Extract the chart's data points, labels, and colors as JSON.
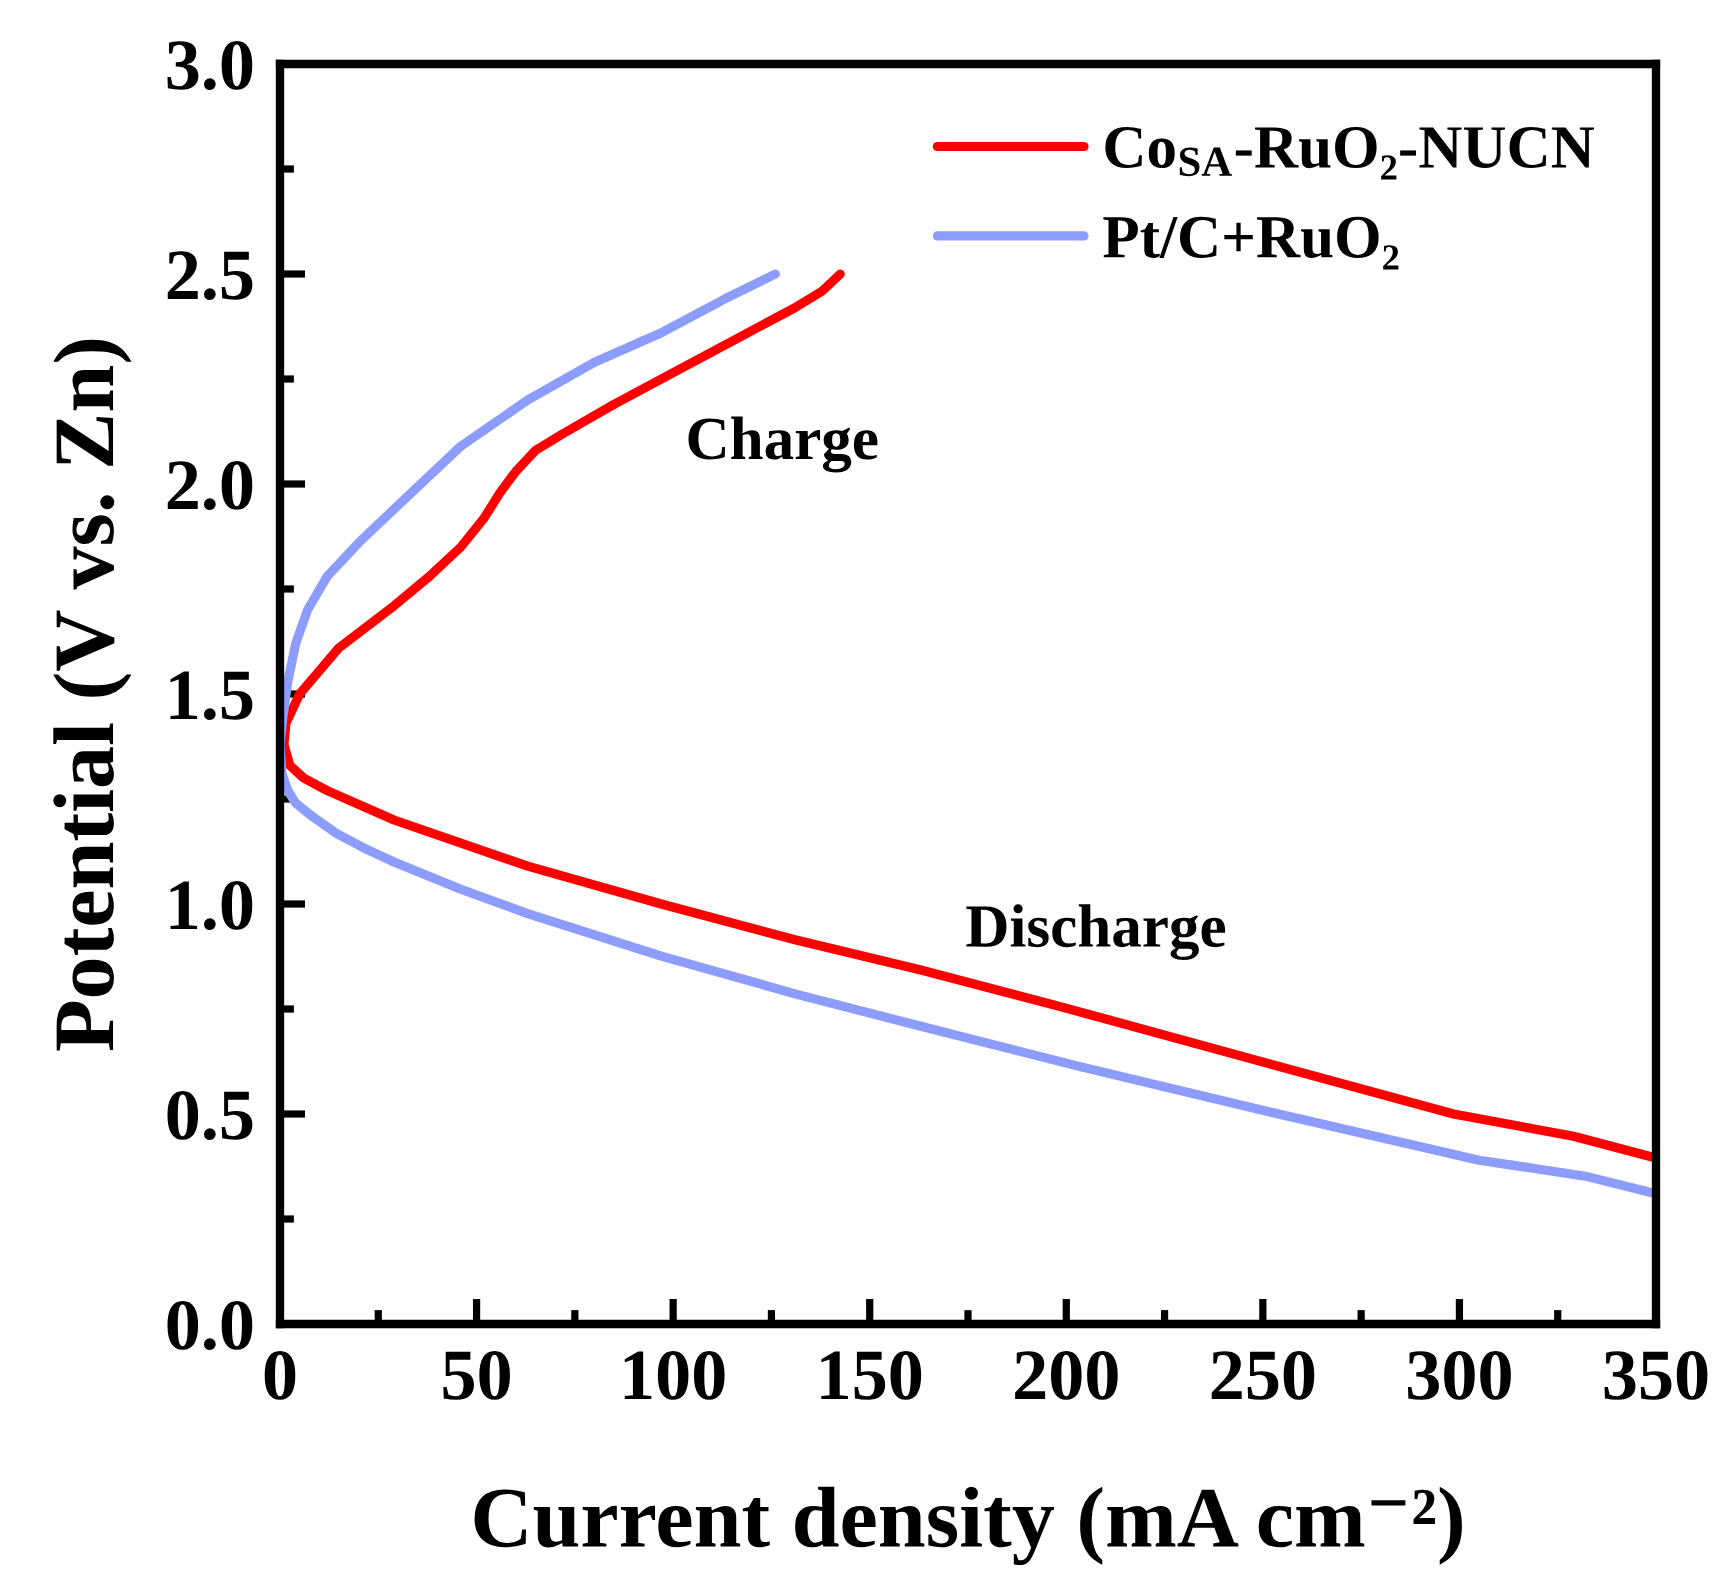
{
  "chart_data": {
    "type": "line",
    "xlabel": "Current density (mA cm⁻²)",
    "ylabel": "Potential (V vs. Zn)",
    "annotations": [
      "Charge",
      "Discharge"
    ],
    "series": [
      {
        "name": "Co$_{SA}$-RuO₂-NUCN",
        "color": "#ff0000",
        "x": [
          142.5,
          138,
          131,
          117,
          97,
          85,
          72,
          65,
          60,
          56,
          52,
          46,
          38,
          29,
          15,
          5,
          1.5,
          1,
          2.5,
          6,
          12,
          29,
          63,
          97,
          131,
          163,
          198,
          248,
          298.5,
          329,
          350
        ],
        "values": [
          2.5,
          2.46,
          2.42,
          2.35,
          2.25,
          2.19,
          2.12,
          2.08,
          2.03,
          1.98,
          1.92,
          1.85,
          1.78,
          1.71,
          1.61,
          1.5,
          1.43,
          1.38,
          1.33,
          1.3,
          1.27,
          1.2,
          1.09,
          1.0,
          0.915,
          0.843,
          0.757,
          0.629,
          0.5,
          0.447,
          0.395
        ]
      },
      {
        "name": "Pt/C+RuO₂",
        "color": "#8c9cff",
        "x": [
          126,
          113,
          97,
          80,
          63,
          46,
          29,
          20,
          12,
          7,
          4,
          2,
          0.8,
          0,
          0.5,
          2,
          4,
          8,
          14,
          21,
          29,
          46,
          63,
          97,
          131,
          163,
          203,
          254,
          305,
          332,
          350
        ],
        "values": [
          2.5,
          2.44,
          2.36,
          2.29,
          2.2,
          2.09,
          1.94,
          1.86,
          1.78,
          1.7,
          1.62,
          1.53,
          1.45,
          1.38,
          1.31,
          1.27,
          1.24,
          1.21,
          1.17,
          1.135,
          1.1,
          1.035,
          0.977,
          0.876,
          0.786,
          0.709,
          0.614,
          0.5,
          0.39,
          0.352,
          0.31
        ]
      }
    ],
    "xlim": [
      0,
      350
    ],
    "ylim": [
      0,
      3
    ],
    "xticks": [
      0,
      {
        "value": 25,
        "label": null
      },
      50,
      {
        "value": 75,
        "label": null
      },
      100,
      {
        "value": 125,
        "label": null
      },
      150,
      {
        "value": 175,
        "label": null
      },
      200,
      {
        "value": 225,
        "label": null
      },
      250,
      {
        "value": 275,
        "label": null
      },
      300,
      {
        "value": 325,
        "label": null
      },
      350
    ],
    "yticks": [
      {
        "value": 0,
        "label": "0.0"
      },
      {
        "value": 0.25,
        "label": null
      },
      0.5,
      {
        "value": 0.75,
        "label": null
      },
      {
        "value": 1,
        "label": "1.0"
      },
      {
        "value": 1.25,
        "label": null
      },
      1.5,
      {
        "value": 1.75,
        "label": null
      },
      {
        "value": 2,
        "label": "2.0"
      },
      {
        "value": 2.25,
        "label": null
      },
      2.5,
      {
        "value": 2.75,
        "label": null
      },
      {
        "value": 3,
        "label": "3.0"
      }
    ],
    "legend": "top right",
    "line_style": "solid"
  }
}
